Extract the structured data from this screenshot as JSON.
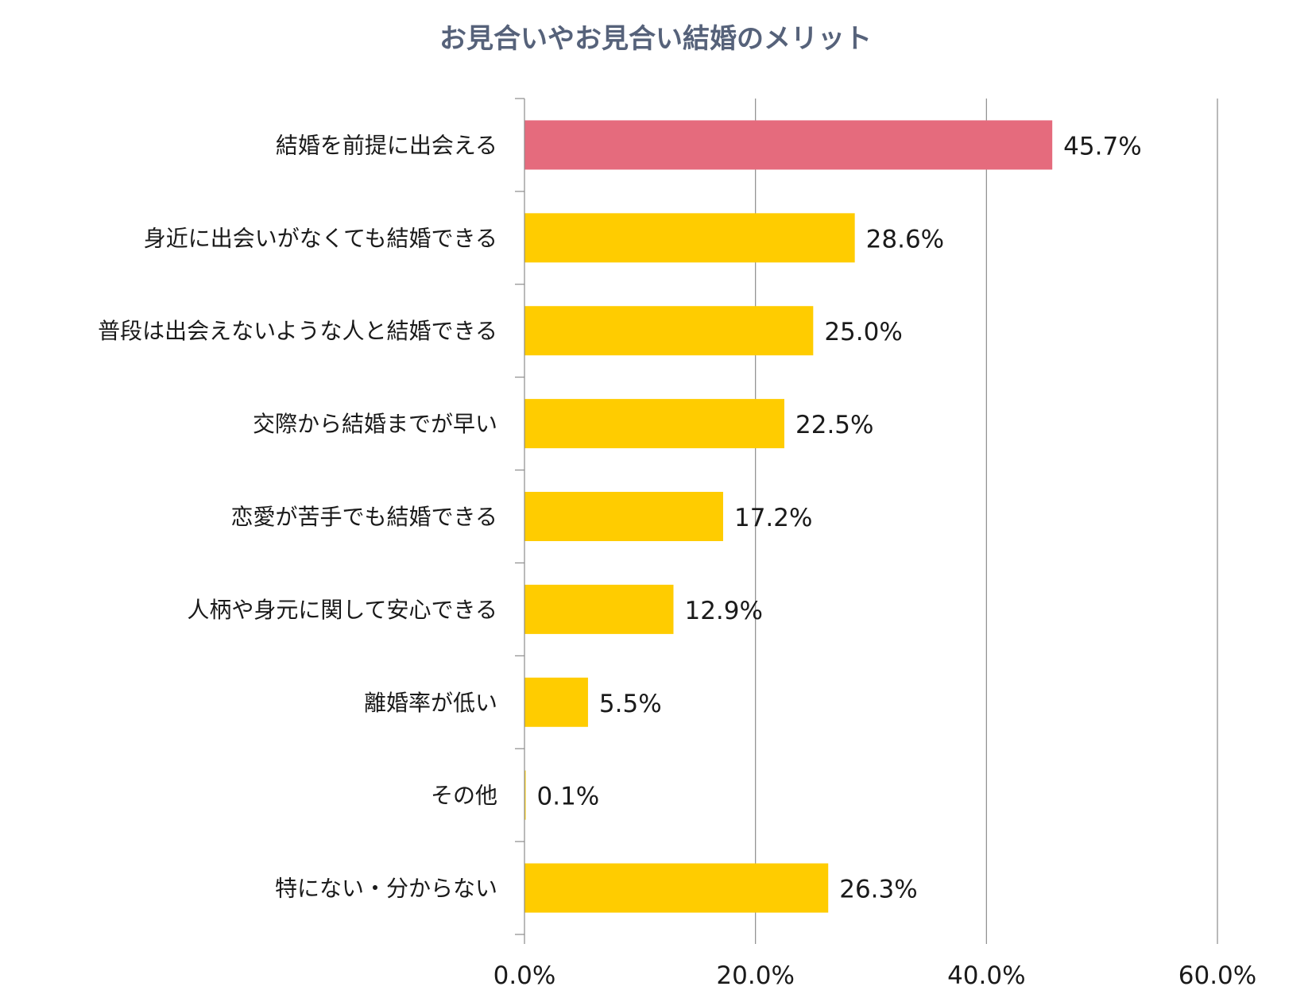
{
  "chart_data": {
    "type": "bar",
    "orientation": "horizontal",
    "title": "お見合いやお見合い結婚のメリット",
    "categories": [
      "結婚を前提に出会える",
      "身近に出会いがなくても結婚できる",
      "普段は出会えないような人と結婚できる",
      "交際から結婚までが早い",
      "恋愛が苦手でも結婚できる",
      "人柄や身元に関して安心できる",
      "離婚率が低い",
      "その他",
      "特にない・分からない"
    ],
    "values": [
      45.7,
      28.6,
      25.0,
      22.5,
      17.2,
      12.9,
      5.5,
      0.1,
      26.3
    ],
    "value_labels": [
      "45.7%",
      "28.6%",
      "25.0%",
      "22.5%",
      "17.2%",
      "12.9%",
      "5.5%",
      "0.1%",
      "26.3%"
    ],
    "xlim": [
      0,
      60
    ],
    "x_ticks": [
      0,
      20,
      40,
      60
    ],
    "x_tick_labels": [
      "0.0%",
      "20.0%",
      "40.0%",
      "60.0%"
    ],
    "grid": "vertical",
    "legend": "none",
    "colors": {
      "highlight": "#e56b7d",
      "default": "#ffcc00",
      "title": "#56627a"
    },
    "highlight_index": 0
  }
}
